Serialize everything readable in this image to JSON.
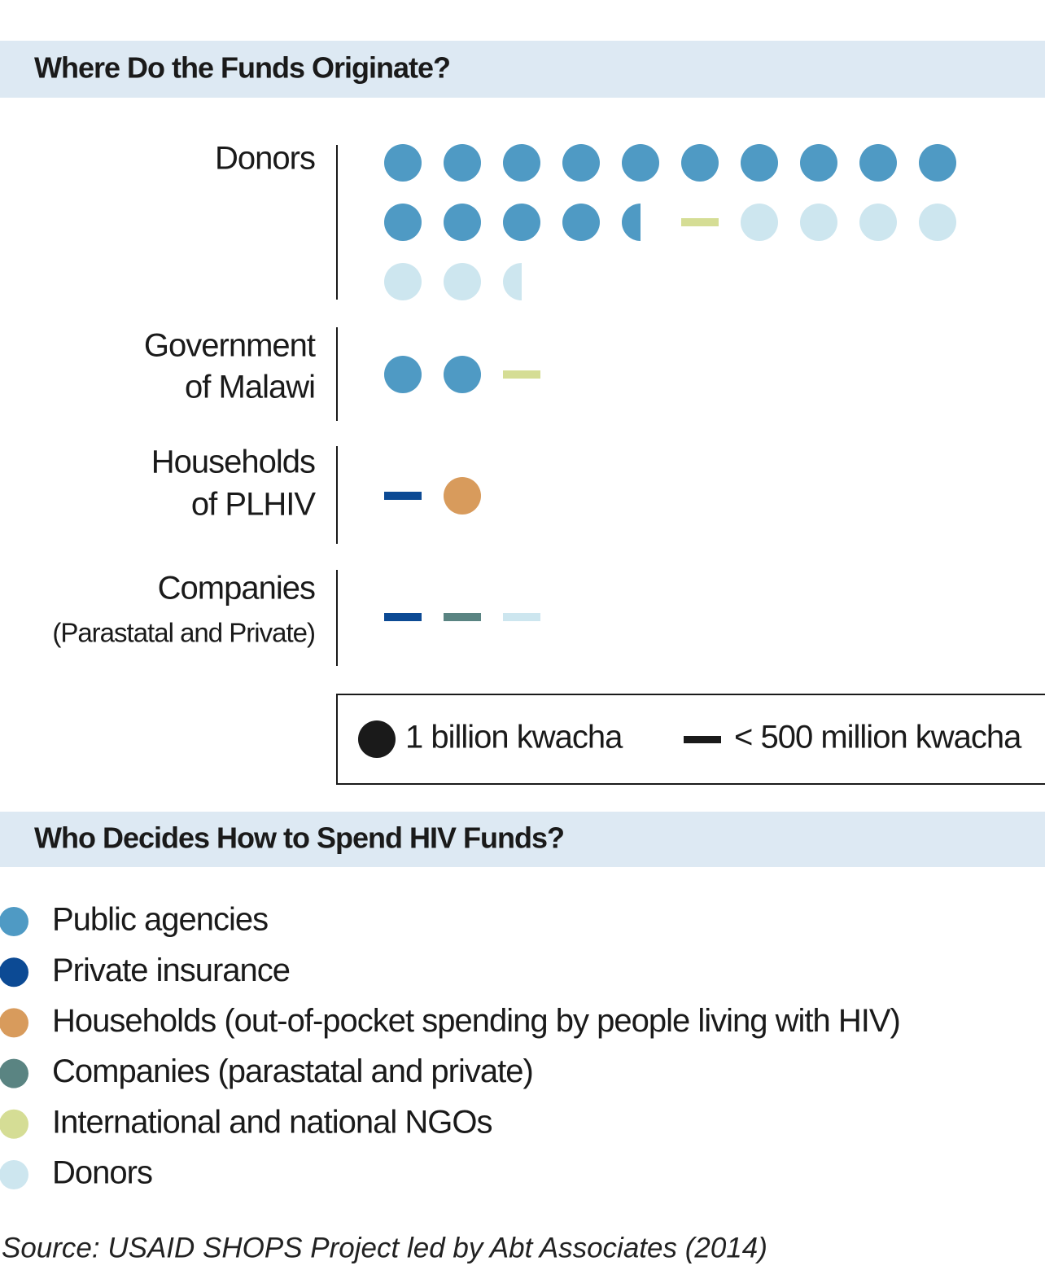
{
  "chart_data": {
    "type": "pictogram",
    "title": "Where Do the Funds Originate?",
    "categories": [
      [
        "Donors"
      ],
      [
        "Government",
        "of Malawi"
      ],
      [
        "Households",
        "of PLHIV"
      ],
      [
        "Companies",
        "(Parastatal and Private)"
      ]
    ],
    "unit_labels": {
      "full": "1 billion kwacha",
      "small": "< 500 million kwacha"
    },
    "legend_title": "Who Decides How to Spend HIV Funds?",
    "series": [
      {
        "name": "Public agencies",
        "color": "#4f9ac4",
        "values": [
          14.5,
          2,
          null,
          null
        ],
        "small": [
          false,
          false,
          false,
          false
        ]
      },
      {
        "name": "Private insurance",
        "color": "#0c4a94",
        "values": [
          null,
          null,
          null,
          null
        ],
        "small": [
          false,
          false,
          true,
          true
        ]
      },
      {
        "name": "Households (out-of-pocket spending by people living with HIV)",
        "color": "#d89b5c",
        "values": [
          null,
          null,
          1,
          null
        ],
        "small": [
          false,
          false,
          false,
          false
        ]
      },
      {
        "name": "Companies (parastatal and private)",
        "color": "#5a8482",
        "values": [
          null,
          null,
          null,
          null
        ],
        "small": [
          false,
          false,
          false,
          true
        ]
      },
      {
        "name": "International and national NGOs",
        "color": "#d5dd95",
        "values": [
          null,
          null,
          null,
          null
        ],
        "small": [
          true,
          true,
          false,
          false
        ]
      },
      {
        "name": "Donors",
        "color": "#cde6ef",
        "values": [
          6.5,
          null,
          null,
          null
        ],
        "small": [
          false,
          false,
          false,
          true
        ]
      }
    ],
    "source": "Source: USAID SHOPS Project led by Abt Associates (2014)"
  }
}
